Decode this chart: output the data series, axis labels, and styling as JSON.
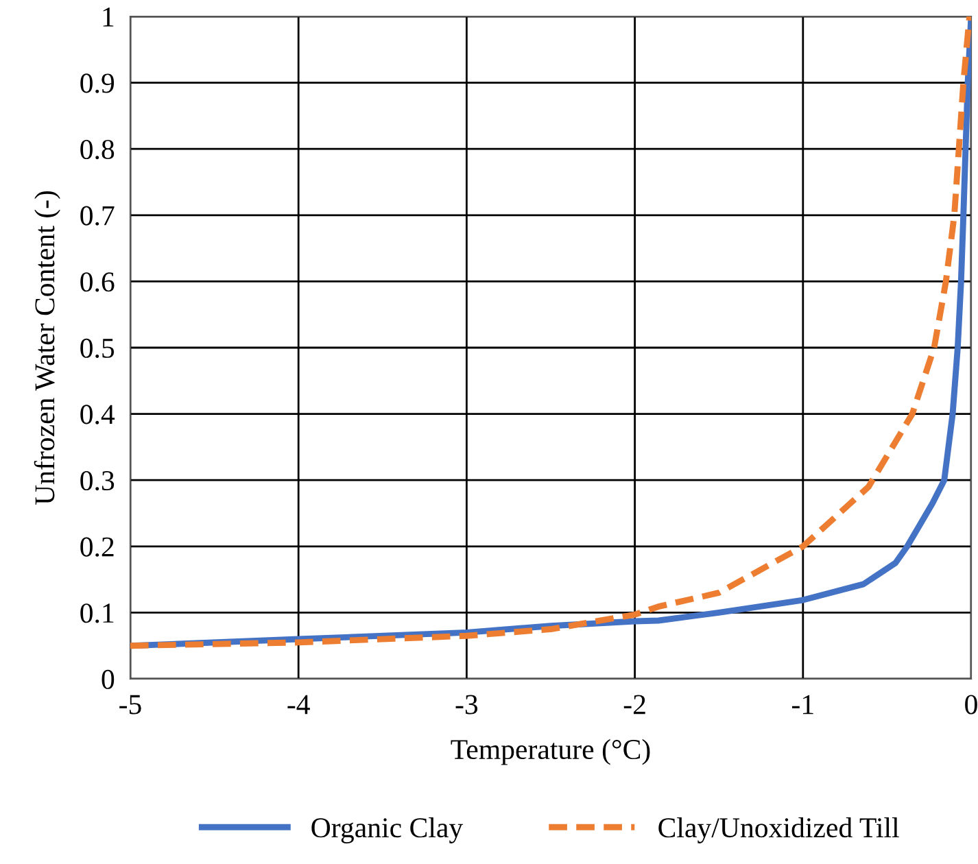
{
  "chart_data": {
    "type": "line",
    "xlabel": "Temperature (°C)",
    "ylabel": "Unfrozen Water Content (-)",
    "xlim": [
      -5,
      0
    ],
    "xticks": [
      -5,
      -4,
      -3,
      -2,
      -1,
      0
    ],
    "ylim": [
      0,
      1
    ],
    "yticks": [
      0,
      0.1,
      0.2,
      0.3,
      0.4,
      0.5,
      0.6,
      0.7,
      0.8,
      0.9,
      1
    ],
    "grid": true,
    "legend": "bottom",
    "series": [
      {
        "name": "Organic Clay",
        "color": "#4472c4",
        "line_style": "solid",
        "x": [
          -5,
          -4,
          -3,
          -2.5,
          -2,
          -1.86,
          -1.5,
          -1,
          -0.64,
          -0.45,
          -0.38,
          -0.23,
          -0.16,
          -0.11,
          -0.08,
          -0.06,
          -0.046,
          -0.033,
          -0.02,
          0
        ],
        "values": [
          0.05,
          0.06,
          0.07,
          0.08,
          0.087,
          0.088,
          0.1,
          0.119,
          0.143,
          0.175,
          0.2,
          0.265,
          0.3,
          0.4,
          0.5,
          0.6,
          0.7,
          0.8,
          0.9,
          1
        ]
      },
      {
        "name": "Clay/Unoxidized Till",
        "color": "#ed7d31",
        "line_style": "dashed",
        "x": [
          -5,
          -4,
          -3,
          -2.5,
          -2,
          -1.86,
          -1.5,
          -1,
          -0.61,
          -0.35,
          -0.22,
          -0.15,
          -0.1,
          -0.073,
          -0.046,
          -0.01
        ],
        "values": [
          0.05,
          0.055,
          0.065,
          0.075,
          0.097,
          0.109,
          0.13,
          0.2,
          0.29,
          0.4,
          0.5,
          0.6,
          0.7,
          0.8,
          0.9,
          1
        ]
      }
    ]
  }
}
